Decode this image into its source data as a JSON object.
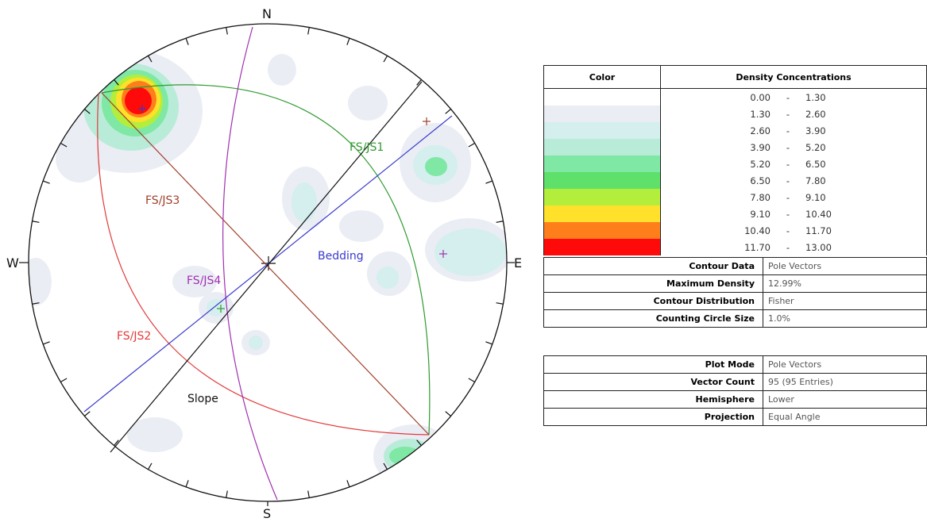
{
  "stereonet": {
    "directions": {
      "north": "N",
      "south": "S",
      "east": "E",
      "west": "W"
    },
    "planes": [
      {
        "name": "FS/JS1",
        "color": "#2e9a2e"
      },
      {
        "name": "FS/JS2",
        "color": "#e23b3b"
      },
      {
        "name": "FS/JS3",
        "color": "#a0402a"
      },
      {
        "name": "FS/JS4",
        "color": "#a030b0"
      },
      {
        "name": "Bedding",
        "color": "#3a3acc"
      },
      {
        "name": "Slope",
        "color": "#111111"
      }
    ]
  },
  "legend": {
    "col_color": "Color",
    "col_density": "Density Concentrations",
    "ranges": [
      {
        "from": "0.00",
        "to": "1.30",
        "color": "#ffffff"
      },
      {
        "from": "1.30",
        "to": "2.60",
        "color": "#eaedf4"
      },
      {
        "from": "2.60",
        "to": "3.90",
        "color": "#d5eeee"
      },
      {
        "from": "3.90",
        "to": "5.20",
        "color": "#b8ecd8"
      },
      {
        "from": "5.20",
        "to": "6.50",
        "color": "#7ee8a4"
      },
      {
        "from": "6.50",
        "to": "7.80",
        "color": "#5ee06a"
      },
      {
        "from": "7.80",
        "to": "9.10",
        "color": "#b4ee3c"
      },
      {
        "from": "9.10",
        "to": "10.40",
        "color": "#ffe02a"
      },
      {
        "from": "10.40",
        "to": "11.70",
        "color": "#ff7e1c"
      },
      {
        "from": "11.70",
        "to": "13.00",
        "color": "#ff0a0a"
      }
    ],
    "separator": "-"
  },
  "info1": [
    {
      "key": "Contour Data",
      "value": "Pole Vectors"
    },
    {
      "key": "Maximum Density",
      "value": "12.99%"
    },
    {
      "key": "Contour Distribution",
      "value": "Fisher"
    },
    {
      "key": "Counting Circle Size",
      "value": "1.0%"
    }
  ],
  "info2": [
    {
      "key": "Plot Mode",
      "value": "Pole Vectors"
    },
    {
      "key": "Vector Count",
      "value": "95 (95 Entries)"
    },
    {
      "key": "Hemisphere",
      "value": "Lower"
    },
    {
      "key": "Projection",
      "value": "Equal Angle"
    }
  ]
}
